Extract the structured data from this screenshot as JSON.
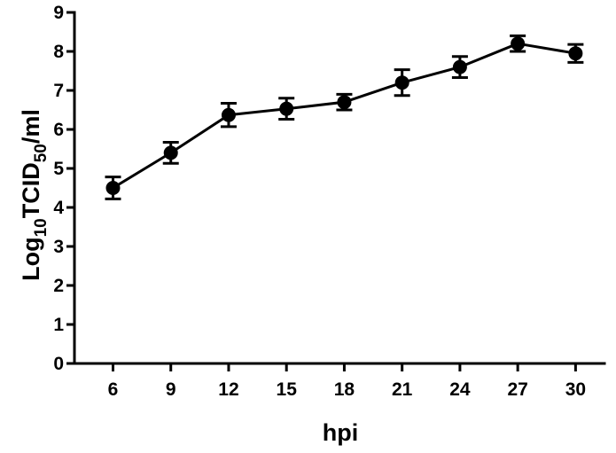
{
  "chart_data": {
    "type": "line",
    "title": "",
    "xlabel": "hpi",
    "ylabel": {
      "base": "Log",
      "base_sub": "10",
      "main": "TCID",
      "main_sub": "50",
      "unit": "/ml"
    },
    "x": [
      6,
      9,
      12,
      15,
      18,
      21,
      24,
      27,
      30
    ],
    "x_tick_labels": [
      "6",
      "9",
      "12",
      "15",
      "18",
      "21",
      "24",
      "27",
      "30"
    ],
    "y_ticks": [
      0,
      1,
      2,
      3,
      4,
      5,
      6,
      7,
      8,
      9
    ],
    "y_tick_labels": [
      "0",
      "1",
      "2",
      "3",
      "4",
      "5",
      "6",
      "7",
      "8",
      "9"
    ],
    "xlim": [
      4,
      31.5
    ],
    "ylim": [
      0,
      9
    ],
    "grid": false,
    "series": [
      {
        "values": [
          4.5,
          5.4,
          6.37,
          6.53,
          6.7,
          7.2,
          7.6,
          8.2,
          7.95
        ],
        "error": [
          0.28,
          0.27,
          0.3,
          0.27,
          0.2,
          0.33,
          0.27,
          0.2,
          0.23
        ],
        "color": "#000000",
        "marker": "circle"
      }
    ]
  }
}
